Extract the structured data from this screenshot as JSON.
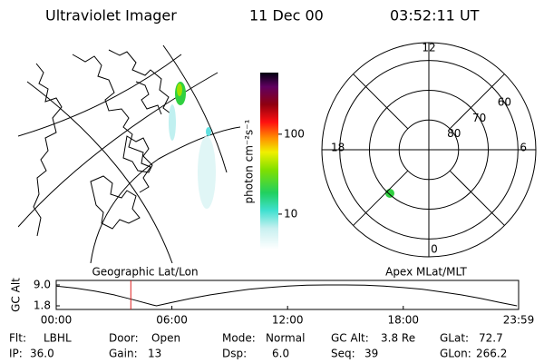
{
  "header": {
    "title": "Ultraviolet Imager",
    "date": "11 Dec 00",
    "time": "03:52:11 UT"
  },
  "colorbar": {
    "label": "photon cm⁻²s⁻¹",
    "range": [
      3.6,
      590
    ],
    "ticks": [
      100,
      10
    ]
  },
  "polar": {
    "mlt_ticks": [
      12,
      18,
      6,
      0
    ],
    "lat_ticks": [
      80,
      70,
      60
    ],
    "lat_range": [
      90,
      54
    ]
  },
  "timeline": {
    "left_label": "Geographic Lat/Lon",
    "right_label": "Apex MLat/MLT",
    "ylabel": "GC Alt",
    "ylim": [
      1.8,
      9.0
    ],
    "yticks": [
      {
        "value": 9.0,
        "label": "9.0"
      },
      {
        "value": 1.8,
        "label": "1.8"
      }
    ],
    "xlim": [
      0,
      23.983
    ],
    "xticks": [
      {
        "value": 0,
        "label": "00:00"
      },
      {
        "value": 6,
        "label": "06:00"
      },
      {
        "value": 12,
        "label": "12:00"
      },
      {
        "value": 18,
        "label": "18:00"
      },
      {
        "value": 23.983,
        "label": "23:59"
      }
    ],
    "marker": 3.87,
    "marker_color": "#e02020",
    "series": {
      "x": [
        0,
        1,
        2,
        3,
        4,
        5,
        5.2,
        6,
        7,
        8,
        9,
        10,
        11,
        12,
        13,
        14,
        15,
        16,
        17,
        18,
        19,
        20,
        21,
        22,
        23,
        23.9
      ],
      "values": [
        8.6,
        7.9,
        6.9,
        5.6,
        3.9,
        2.1,
        1.8,
        3.0,
        4.4,
        5.6,
        6.6,
        7.5,
        8.1,
        8.6,
        8.9,
        9.0,
        9.0,
        8.9,
        8.6,
        8.1,
        7.5,
        6.6,
        5.6,
        4.4,
        3.0,
        1.8
      ]
    }
  },
  "footer": {
    "rows": [
      [
        [
          "Flt:",
          "LBHL"
        ],
        [
          "Door:",
          "Open"
        ],
        [
          "Mode:",
          "Normal"
        ],
        [
          "GC Alt:",
          "3.8 Re"
        ],
        [
          "GLat:",
          "72.7"
        ]
      ],
      [
        [
          "IP:",
          "36.0"
        ],
        [
          "Gain:",
          "13"
        ],
        [
          "Dsp:",
          "6.0"
        ],
        [
          "Seq:",
          "39"
        ],
        [
          "GLon:",
          "266.2"
        ]
      ]
    ]
  }
}
